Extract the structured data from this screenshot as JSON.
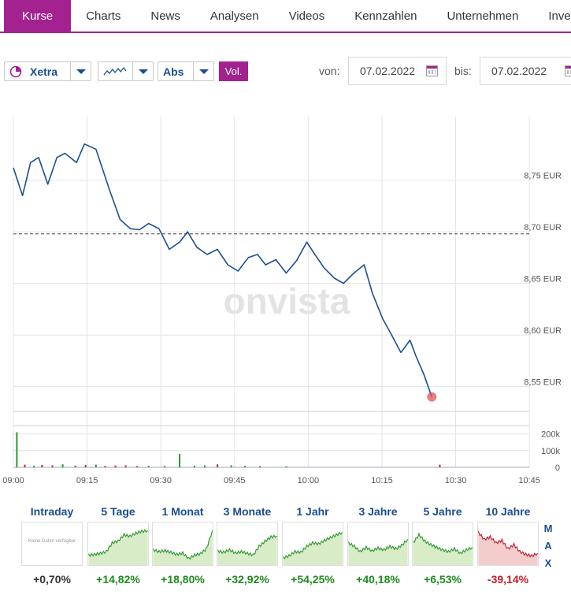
{
  "tabs": [
    "Kurse",
    "Charts",
    "News",
    "Analysen",
    "Videos",
    "Kennzahlen",
    "Unternehmen",
    "Invest"
  ],
  "toolbar": {
    "exchange": "Xetra",
    "display": "Abs",
    "volume": "Vol.",
    "from_label": "von:",
    "from_date": "07.02.2022",
    "to_label": "bis:",
    "to_date": "07.02.2022"
  },
  "watermark": "onvista",
  "chart_data": {
    "type": "line",
    "currency": "EUR",
    "x_ticks": [
      "09:00",
      "09:15",
      "09:30",
      "09:45",
      "10:00",
      "10:15",
      "10:30",
      "10:45"
    ],
    "y_ticks": [
      "8,55 EUR",
      "8,60 EUR",
      "8,65 EUR",
      "8,70 EUR",
      "8,75 EUR"
    ],
    "y_tick_values": [
      8.55,
      8.6,
      8.65,
      8.7,
      8.75
    ],
    "ylim": [
      8.526,
      8.81
    ],
    "xlim": [
      0,
      45
    ],
    "reference_line": 8.698,
    "grid": true,
    "x_minutes": [
      0,
      0.8,
      1.5,
      2.2,
      3,
      3.8,
      4.5,
      5.5,
      6.2,
      7.2,
      7.5,
      8.4,
      9.3,
      10.2,
      11,
      11.8,
      12.7,
      13.6,
      14.5,
      15.2,
      16,
      16.9,
      17.8,
      18.7,
      19.6,
      20.5,
      21.3,
      22,
      22.9,
      23.8,
      24.7,
      25.6,
      26.3,
      27.1,
      28,
      28.8,
      29.7,
      30.6,
      31.3,
      32.2,
      33,
      33.8,
      34.6,
      35.1,
      35.8,
      36.5
    ],
    "prices": [
      8.762,
      8.735,
      8.767,
      8.772,
      8.746,
      8.772,
      8.776,
      8.767,
      8.785,
      8.78,
      8.77,
      8.74,
      8.712,
      8.703,
      8.702,
      8.708,
      8.703,
      8.683,
      8.69,
      8.7,
      8.685,
      8.678,
      8.683,
      8.668,
      8.662,
      8.675,
      8.678,
      8.668,
      8.673,
      8.66,
      8.672,
      8.69,
      8.678,
      8.665,
      8.655,
      8.65,
      8.66,
      8.668,
      8.641,
      8.616,
      8.6,
      8.583,
      8.595,
      8.58,
      8.562,
      8.54
    ],
    "last_point": {
      "x": 36.5,
      "price": 8.54
    },
    "volume": {
      "ticks": [
        "0",
        "100k",
        "200k"
      ],
      "tick_values": [
        0,
        100000,
        200000
      ],
      "max": 250000,
      "bars": [
        {
          "x": 0.3,
          "v": 210000,
          "dir": "up"
        },
        {
          "x": 1.0,
          "v": 16000,
          "dir": "down"
        },
        {
          "x": 1.8,
          "v": 10000,
          "dir": "up"
        },
        {
          "x": 2.5,
          "v": 15000,
          "dir": "down"
        },
        {
          "x": 3.4,
          "v": 12000,
          "dir": "down"
        },
        {
          "x": 4.3,
          "v": 18000,
          "dir": "up"
        },
        {
          "x": 5.4,
          "v": 10000,
          "dir": "down"
        },
        {
          "x": 6.3,
          "v": 14000,
          "dir": "down"
        },
        {
          "x": 7.2,
          "v": 16000,
          "dir": "up"
        },
        {
          "x": 8.0,
          "v": 9000,
          "dir": "down"
        },
        {
          "x": 8.9,
          "v": 11000,
          "dir": "down"
        },
        {
          "x": 9.8,
          "v": 12000,
          "dir": "down"
        },
        {
          "x": 10.8,
          "v": 8000,
          "dir": "down"
        },
        {
          "x": 11.8,
          "v": 9000,
          "dir": "up"
        },
        {
          "x": 13.2,
          "v": 7000,
          "dir": "down"
        },
        {
          "x": 14.5,
          "v": 80000,
          "dir": "up"
        },
        {
          "x": 15.8,
          "v": 10000,
          "dir": "up"
        },
        {
          "x": 16.7,
          "v": 11000,
          "dir": "up"
        },
        {
          "x": 17.8,
          "v": 18000,
          "dir": "down"
        },
        {
          "x": 19.0,
          "v": 12000,
          "dir": "up"
        },
        {
          "x": 20.2,
          "v": 9000,
          "dir": "up"
        },
        {
          "x": 21.5,
          "v": 7000,
          "dir": "down"
        },
        {
          "x": 23.8,
          "v": 6000,
          "dir": "up"
        },
        {
          "x": 37.2,
          "v": 16000,
          "dir": "down"
        }
      ]
    }
  },
  "periods": [
    {
      "label": "Intraday",
      "value": "+0,70%",
      "trend": "pos",
      "active": true,
      "nodata": "Keine Daten verfügbar"
    },
    {
      "label": "5 Tage",
      "value": "+14,82%",
      "trend": "pos",
      "spark": [
        0.2,
        0.22,
        0.25,
        0.3,
        0.55,
        0.6,
        0.78,
        0.74,
        0.83,
        0.88,
        0.9
      ]
    },
    {
      "label": "1 Monat",
      "value": "+18,80%",
      "trend": "pos",
      "spark": [
        0.35,
        0.3,
        0.33,
        0.28,
        0.22,
        0.26,
        0.1,
        0.2,
        0.24,
        0.38,
        0.9
      ]
    },
    {
      "label": "3 Monate",
      "value": "+32,92%",
      "trend": "pos",
      "spark": [
        0.32,
        0.28,
        0.35,
        0.26,
        0.3,
        0.25,
        0.2,
        0.45,
        0.6,
        0.72,
        0.75
      ]
    },
    {
      "label": "1 Jahr",
      "value": "+54,25%",
      "trend": "pos",
      "spark": [
        0.12,
        0.18,
        0.3,
        0.28,
        0.45,
        0.55,
        0.52,
        0.62,
        0.7,
        0.78,
        0.85
      ]
    },
    {
      "label": "3 Jahre",
      "value": "+40,18%",
      "trend": "pos",
      "spark": [
        0.55,
        0.45,
        0.3,
        0.42,
        0.32,
        0.4,
        0.35,
        0.45,
        0.38,
        0.48,
        0.65
      ]
    },
    {
      "label": "5 Jahre",
      "value": "+6,53%",
      "trend": "pos",
      "spark": [
        0.55,
        0.78,
        0.6,
        0.5,
        0.42,
        0.35,
        0.3,
        0.38,
        0.25,
        0.35,
        0.42
      ]
    },
    {
      "label": "10 Jahre",
      "value": "-39,14%",
      "trend": "neg",
      "spark": [
        0.85,
        0.65,
        0.72,
        0.55,
        0.62,
        0.38,
        0.5,
        0.3,
        0.22,
        0.18,
        0.25
      ]
    }
  ],
  "max_label": [
    "M",
    "A",
    "X"
  ]
}
